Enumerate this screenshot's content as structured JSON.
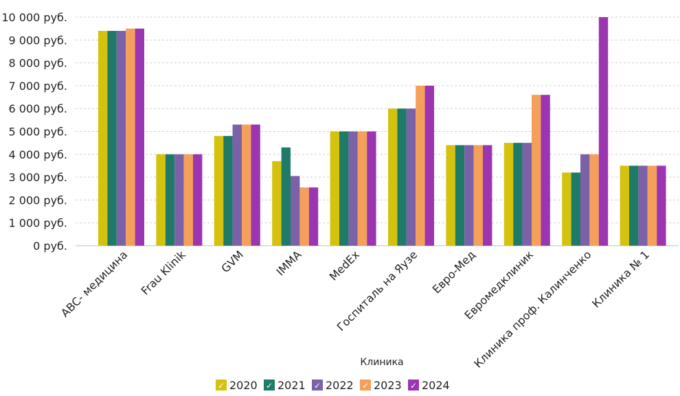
{
  "chart_data": {
    "type": "bar",
    "categories": [
      "ABC- медицина",
      "Frau Klinik",
      "GVM",
      "IMMA",
      "MedEx",
      "Госпиталь на Яузе",
      "Евро-Мед",
      "Евромедклиник",
      "Клиника проф. Калинченко",
      "Клиника № 1"
    ],
    "series": [
      {
        "name": "2020",
        "color": "#d4c20f",
        "values": [
          9400,
          4000,
          4800,
          3700,
          5000,
          6000,
          4400,
          4500,
          3200,
          3500
        ]
      },
      {
        "name": "2021",
        "color": "#1f7a68",
        "values": [
          9400,
          4000,
          4800,
          4300,
          5000,
          6000,
          4400,
          4500,
          3200,
          3500
        ]
      },
      {
        "name": "2022",
        "color": "#7b62a8",
        "values": [
          9400,
          4000,
          5300,
          3050,
          5000,
          6000,
          4400,
          4500,
          4000,
          3500
        ]
      },
      {
        "name": "2023",
        "color": "#f4a05a",
        "values": [
          9500,
          4000,
          5300,
          2550,
          5000,
          7000,
          4400,
          6600,
          4000,
          3500
        ]
      },
      {
        "name": "2024",
        "color": "#9b35b0",
        "values": [
          9500,
          4000,
          5300,
          2550,
          5000,
          7000,
          4400,
          6600,
          10000,
          3500
        ]
      }
    ],
    "ytick_labels": [
      "0 руб.",
      "1 000 руб.",
      "2 000 руб.",
      "3 000 руб.",
      "4 000 руб.",
      "5 000 руб.",
      "6 000 руб.",
      "7 000 руб.",
      "8 000 руб.",
      "9 000 руб.",
      "10 000 руб."
    ],
    "ytick_values": [
      0,
      1000,
      2000,
      3000,
      4000,
      5000,
      6000,
      7000,
      8000,
      9000,
      10000
    ],
    "xlabel": "Клиника",
    "ylabel": "",
    "ylim": [
      0,
      10000
    ],
    "grid": true,
    "legend_position": "bottom-center",
    "legend_check_glyph": "✓"
  }
}
